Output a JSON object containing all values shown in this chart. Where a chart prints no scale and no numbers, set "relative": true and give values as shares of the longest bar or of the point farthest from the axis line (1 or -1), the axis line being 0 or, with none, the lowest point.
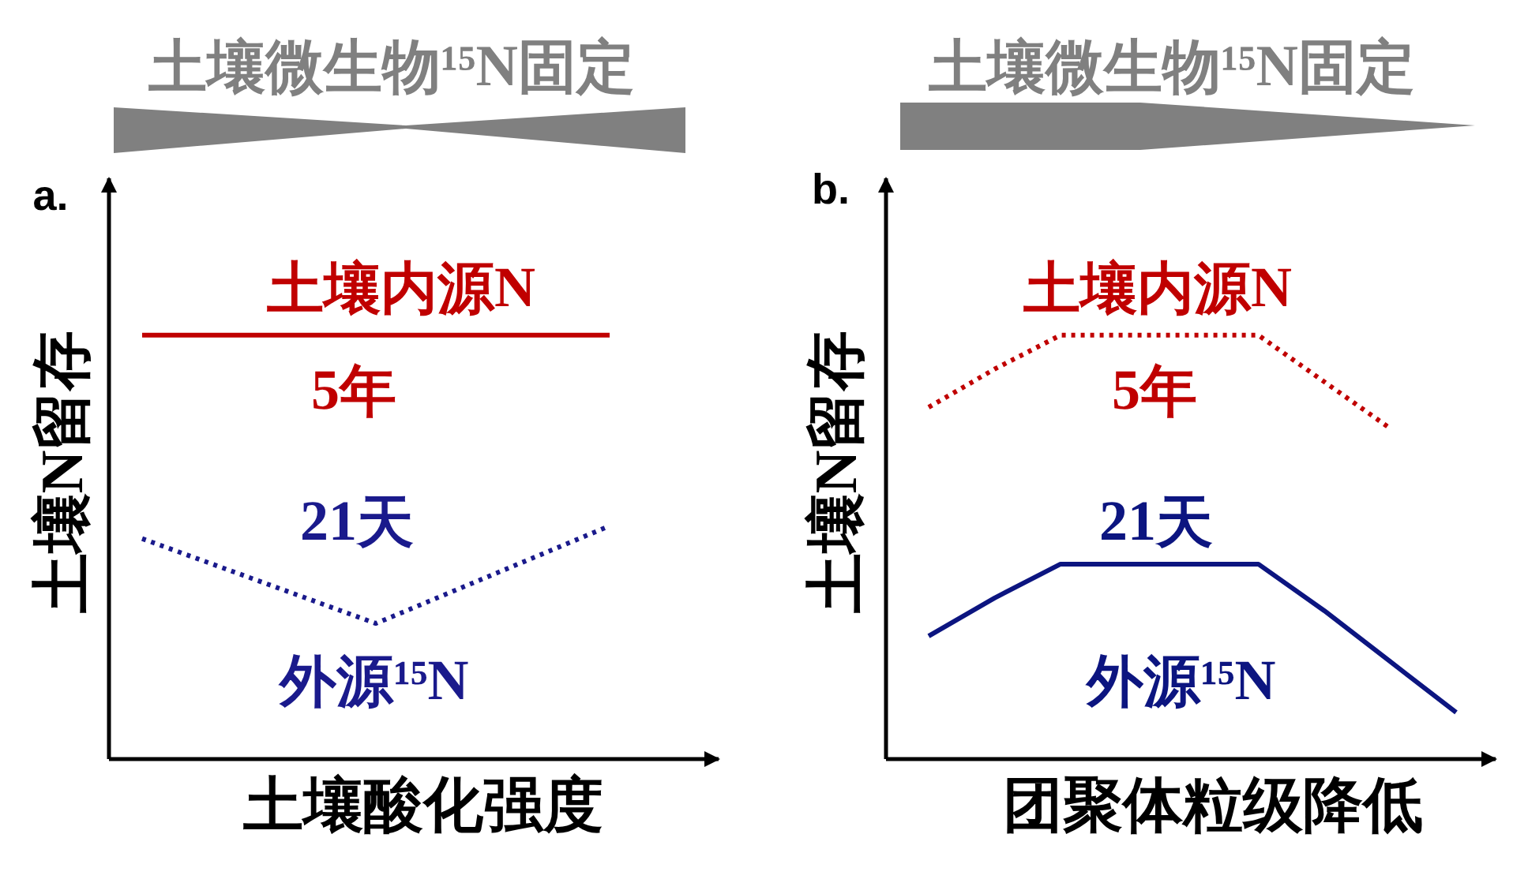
{
  "chart_data": [
    {
      "type": "line",
      "title": "土壤微生物¹⁵N固定",
      "xlabel": "土壤酸化强度",
      "ylabel": "土壤N留存",
      "relative": true,
      "categories": [
        null,
        null,
        null
      ],
      "series": [
        {
          "name": "土壤内源N",
          "color": "#c00000",
          "line_style": "solid",
          "values": [
            1,
            1,
            1
          ]
        },
        {
          "name": "外源¹⁵N",
          "color": "#1a1a8c",
          "line_style": "dotted",
          "values": [
            0.52,
            0.32,
            0.55
          ]
        }
      ],
      "annotations": [
        "a.",
        "5年",
        "21天"
      ]
    },
    {
      "type": "line",
      "title": "土壤微生物¹⁵N固定",
      "xlabel": "团聚体粒级降低",
      "ylabel": "土壤N留存",
      "relative": true,
      "categories": [
        null,
        null,
        null,
        null,
        null,
        null,
        null,
        null,
        null
      ],
      "series": [
        {
          "name": "土壤内源N",
          "color": "#c00000",
          "line_style": "dotted",
          "values": [
            0.83,
            0.92,
            1,
            1,
            1,
            1,
            0.89,
            0.78,
            null
          ]
        },
        {
          "name": "外源¹⁵N",
          "color": "#0c1580",
          "line_style": "solid",
          "values": [
            0.29,
            0.38,
            0.46,
            0.46,
            0.46,
            0.46,
            0.35,
            0.23,
            0.11
          ]
        }
      ],
      "annotations": [
        "b.",
        "5年",
        "21天"
      ]
    }
  ]
}
